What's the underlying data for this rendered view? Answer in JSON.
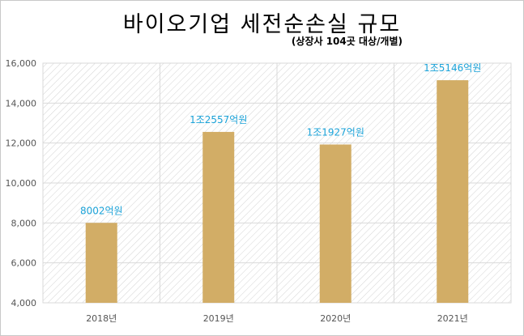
{
  "title": "바이오기업 세전순손실 규모",
  "subtitle": "(상장사 104곳 대상/개별)",
  "colors": {
    "bar": "#d2ad66",
    "label": "#1ba3d9",
    "grid": "#d9d9d9"
  },
  "chart_data": {
    "type": "bar",
    "categories": [
      "2018년",
      "2019년",
      "2020년",
      "2021년"
    ],
    "values": [
      8002,
      12557,
      11927,
      15146
    ],
    "data_labels": [
      "8002억원",
      "1조2557억원",
      "1조1927억원",
      "1조5146억원"
    ],
    "yticks": [
      "4,000",
      "6,000",
      "8,000",
      "10,000",
      "12,000",
      "14,000",
      "16,000"
    ],
    "ylim": [
      4000,
      16000
    ],
    "grid": true,
    "legend": "none"
  }
}
